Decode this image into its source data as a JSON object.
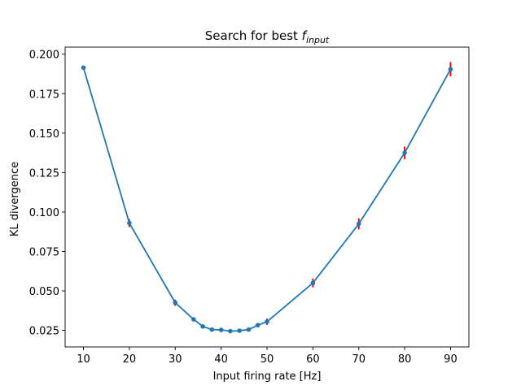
{
  "chart_data": {
    "type": "line",
    "title_main": "Search for best ",
    "title_math_base": "f",
    "title_math_sub": "input",
    "xlabel": "Input firing rate [Hz]",
    "ylabel": "KL divergence",
    "xlim": [
      6.0,
      94.0
    ],
    "ylim": [
      0.0145,
      0.2045
    ],
    "xticks": [
      10,
      20,
      30,
      40,
      50,
      60,
      70,
      80,
      90
    ],
    "xtick_labels": [
      "10",
      "20",
      "30",
      "40",
      "50",
      "60",
      "70",
      "80",
      "90"
    ],
    "yticks": [
      0.025,
      0.05,
      0.075,
      0.1,
      0.125,
      0.15,
      0.175,
      0.2
    ],
    "ytick_labels": [
      "0.025",
      "0.050",
      "0.075",
      "0.100",
      "0.125",
      "0.150",
      "0.175",
      "0.200"
    ],
    "grid": false,
    "series": [
      {
        "x": [
          10,
          20,
          30,
          34,
          36,
          38,
          40,
          42,
          44,
          46,
          48,
          50,
          60,
          70,
          80,
          90
        ],
        "y": [
          0.1915,
          0.093,
          0.0425,
          0.032,
          0.0275,
          0.0255,
          0.0253,
          0.0245,
          0.0248,
          0.0255,
          0.0283,
          0.0305,
          0.055,
          0.0925,
          0.1375,
          0.1905
        ],
        "yerr": [
          0.0005,
          0.0025,
          0.002,
          0.001,
          0.0007,
          0.0007,
          0.0008,
          0.0006,
          0.0007,
          0.001,
          0.0008,
          0.002,
          0.0028,
          0.0035,
          0.004,
          0.0045
        ]
      }
    ],
    "line_color": "#1f77b4",
    "errorbar_color": "#ff0000"
  }
}
